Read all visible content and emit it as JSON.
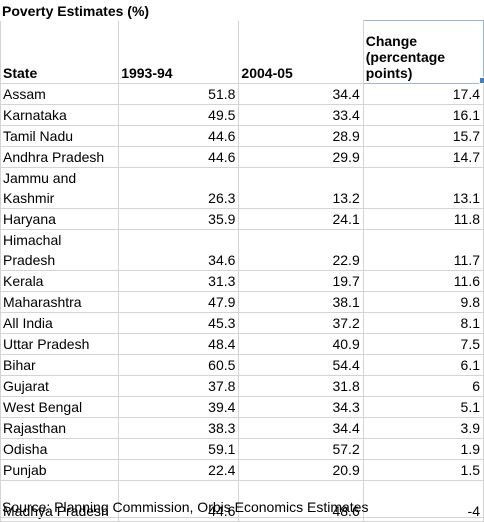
{
  "title": "Poverty Estimates (%)",
  "headers": {
    "state": "State",
    "year1": "1993-94",
    "year2": "2004-05",
    "change": "Change (percentage points)"
  },
  "rows": [
    {
      "state": "Assam",
      "y1": "51.8",
      "y2": "34.4",
      "change": "17.4"
    },
    {
      "state": "Karnataka",
      "y1": "49.5",
      "y2": "33.4",
      "change": "16.1"
    },
    {
      "state": "Tamil Nadu",
      "y1": "44.6",
      "y2": "28.9",
      "change": "15.7"
    },
    {
      "state": "Andhra Pradesh",
      "y1": "44.6",
      "y2": "29.9",
      "change": "14.7"
    },
    {
      "state": "Jammu and Kashmir",
      "y1": "26.3",
      "y2": "13.2",
      "change": "13.1"
    },
    {
      "state": "Haryana",
      "y1": "35.9",
      "y2": "24.1",
      "change": "11.8"
    },
    {
      "state": "Himachal Pradesh",
      "y1": "34.6",
      "y2": "22.9",
      "change": "11.7"
    },
    {
      "state": "Kerala",
      "y1": "31.3",
      "y2": "19.7",
      "change": "11.6"
    },
    {
      "state": "Maharashtra",
      "y1": "47.9",
      "y2": "38.1",
      "change": "9.8"
    },
    {
      "state": "All India",
      "y1": "45.3",
      "y2": "37.2",
      "change": "8.1"
    },
    {
      "state": "Uttar Pradesh",
      "y1": "48.4",
      "y2": "40.9",
      "change": "7.5"
    },
    {
      "state": "Bihar",
      "y1": "60.5",
      "y2": "54.4",
      "change": "6.1"
    },
    {
      "state": "Gujarat",
      "y1": "37.8",
      "y2": "31.8",
      "change": "6"
    },
    {
      "state": "West Bengal",
      "y1": "39.4",
      "y2": "34.3",
      "change": "5.1"
    },
    {
      "state": "Rajasthan",
      "y1": "38.3",
      "y2": "34.4",
      "change": "3.9"
    },
    {
      "state": "Odisha",
      "y1": "59.1",
      "y2": "57.2",
      "change": "1.9"
    },
    {
      "state": "Punjab",
      "y1": "22.4",
      "y2": "20.9",
      "change": "1.5"
    },
    {
      "state": "Madhya Pradesh",
      "y1": "44.6",
      "y2": "48.6",
      "change": "-4"
    }
  ],
  "source": "Source: Planning Commission, Orbis Economics Estimates"
}
